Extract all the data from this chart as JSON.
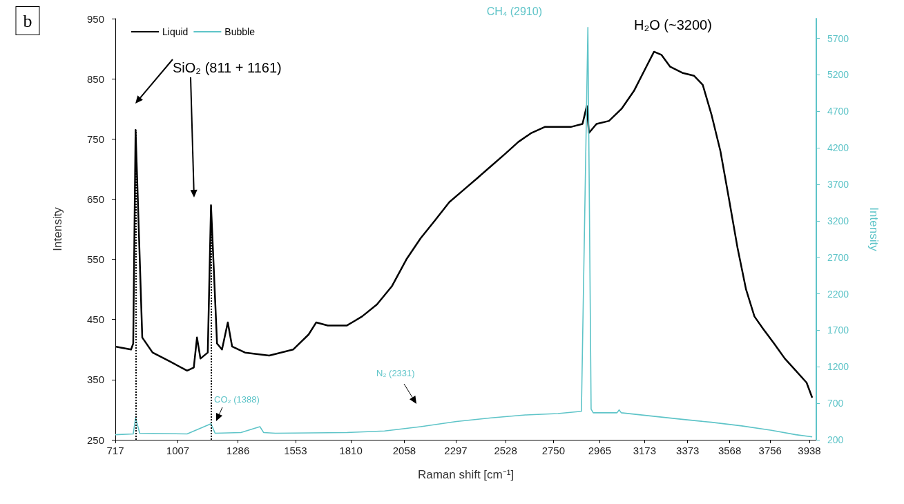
{
  "chart_data": {
    "type": "line",
    "xlabel": "Raman shift [cm⁻¹]",
    "ylabel": "Intensity",
    "y2label": "Intensity",
    "xlim": [
      717,
      3970
    ],
    "xticks": [
      717,
      1007,
      1286,
      1553,
      1810,
      2058,
      2297,
      2528,
      2750,
      2965,
      3173,
      3373,
      3568,
      3756,
      3938
    ],
    "ylim": [
      250,
      950
    ],
    "yticks": [
      250,
      350,
      450,
      550,
      650,
      750,
      850,
      950
    ],
    "y2lim": [
      200,
      5970
    ],
    "y2ticks": [
      200,
      700,
      1200,
      1700,
      2200,
      2700,
      3200,
      3700,
      4200,
      4700,
      5200,
      5700
    ],
    "legend": "top left",
    "grid": false,
    "marker": "none",
    "line_style": "solid",
    "series": [
      {
        "name": "Liquid",
        "color": "#000000",
        "x": [
          717,
          790,
          800,
          811,
          842,
          890,
          971,
          1050,
          1081,
          1096,
          1112,
          1146,
          1161,
          1189,
          1212,
          1239,
          1259,
          1319,
          1431,
          1542,
          1614,
          1649,
          1703,
          1792,
          1862,
          1931,
          2000,
          2068,
          2134,
          2201,
          2267,
          2332,
          2397,
          2461,
          2525,
          2587,
          2648,
          2710,
          2771,
          2831,
          2885,
          2905,
          2915,
          2950,
          3008,
          3066,
          3124,
          3181,
          3217,
          3251,
          3292,
          3348,
          3403,
          3443,
          3484,
          3525,
          3565,
          3604,
          3644,
          3683,
          3722,
          3774,
          3824,
          3875,
          3925,
          3951
        ],
        "values": [
          405,
          400,
          410,
          765,
          420,
          395,
          380,
          365,
          370,
          420,
          385,
          395,
          640,
          410,
          400,
          445,
          405,
          395,
          390,
          400,
          425,
          445,
          440,
          440,
          455,
          475,
          505,
          550,
          585,
          615,
          645,
          665,
          685,
          705,
          725,
          745,
          760,
          770,
          770,
          770,
          775,
          805,
          760,
          775,
          780,
          800,
          830,
          870,
          895,
          890,
          870,
          860,
          855,
          840,
          790,
          730,
          650,
          570,
          500,
          455,
          435,
          410,
          385,
          365,
          345,
          320
        ]
      },
      {
        "name": "Bubble",
        "color": "#5ec4c8",
        "axis": "y2",
        "x": [
          717,
          800,
          811,
          830,
          1050,
          1161,
          1180,
          1300,
          1388,
          1405,
          1460,
          1792,
          1966,
          2134,
          2300,
          2461,
          2620,
          2771,
          2880,
          2910,
          2925,
          2935,
          3045,
          3055,
          3065,
          3191,
          3348,
          3484,
          3624,
          3762,
          3875,
          3951
        ],
        "values": [
          270,
          280,
          500,
          290,
          280,
          420,
          290,
          300,
          380,
          300,
          290,
          300,
          320,
          380,
          450,
          500,
          540,
          560,
          590,
          5850,
          620,
          570,
          570,
          610,
          570,
          530,
          480,
          440,
          390,
          330,
          270,
          240
        ]
      }
    ],
    "ref_lines": [
      {
        "axis": "x",
        "value": 811,
        "color": "#000000",
        "line_style": "dotted"
      },
      {
        "axis": "x",
        "value": 1161,
        "color": "#000000",
        "line_style": "dotted"
      }
    ],
    "annotations": [
      "b",
      "SiO₂ (811 + 1161)",
      "H₂O (~3200)",
      "CH₄ (2910)",
      "CO₂ (1388)",
      "N₂ (2331)"
    ]
  }
}
